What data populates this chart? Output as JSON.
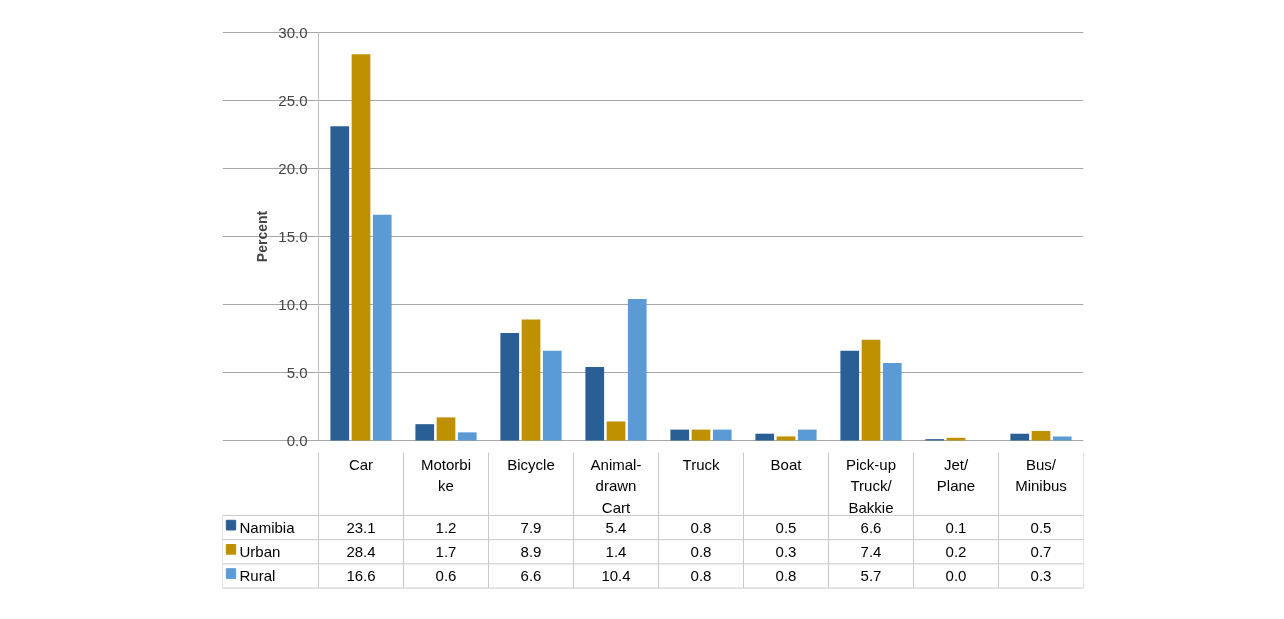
{
  "chart_data": {
    "type": "bar",
    "ylabel": "Percent",
    "categories": [
      "Car",
      "Motorbi\nke",
      "Bicycle",
      "Animal-\ndrawn\nCart",
      "Truck",
      "Boat",
      "Pick-up\nTruck/\nBakkie",
      "Jet/\nPlane",
      "Bus/\nMinibus"
    ],
    "series": [
      {
        "name": "Namibia",
        "color": "#2a5f95",
        "values": [
          23.1,
          1.2,
          7.9,
          5.4,
          0.8,
          0.5,
          6.6,
          0.1,
          0.5
        ],
        "value_labels": [
          "23.1",
          "1.2",
          "7.9",
          "5.4",
          "0.8",
          "0.5",
          "6.6",
          "0.1",
          "0.5"
        ]
      },
      {
        "name": "Urban",
        "color": "#bf9000",
        "values": [
          28.4,
          1.7,
          8.9,
          1.4,
          0.8,
          0.3,
          7.4,
          0.2,
          0.7
        ],
        "value_labels": [
          "28.4",
          "1.7",
          "8.9",
          "1.4",
          "0.8",
          "0.3",
          "7.4",
          "0.2",
          "0.7"
        ]
      },
      {
        "name": "Rural",
        "color": "#5b9bd5",
        "values": [
          16.6,
          0.6,
          6.6,
          10.4,
          0.8,
          0.8,
          5.7,
          0.0,
          0.3
        ],
        "value_labels": [
          "16.6",
          "0.6",
          "6.6",
          "10.4",
          "0.8",
          "0.8",
          "5.7",
          "0.0",
          "0.3"
        ]
      }
    ],
    "ylim": [
      0,
      30
    ],
    "yticks": [
      {
        "value": 0,
        "label": "0.0"
      },
      {
        "value": 5,
        "label": "5.0"
      },
      {
        "value": 10,
        "label": "10.0"
      },
      {
        "value": 15,
        "label": "15.0"
      },
      {
        "value": 20,
        "label": "20.0"
      },
      {
        "value": 25,
        "label": "25.0"
      },
      {
        "value": 30,
        "label": "30.0"
      }
    ],
    "grid": "y",
    "legend": "bottom left"
  }
}
